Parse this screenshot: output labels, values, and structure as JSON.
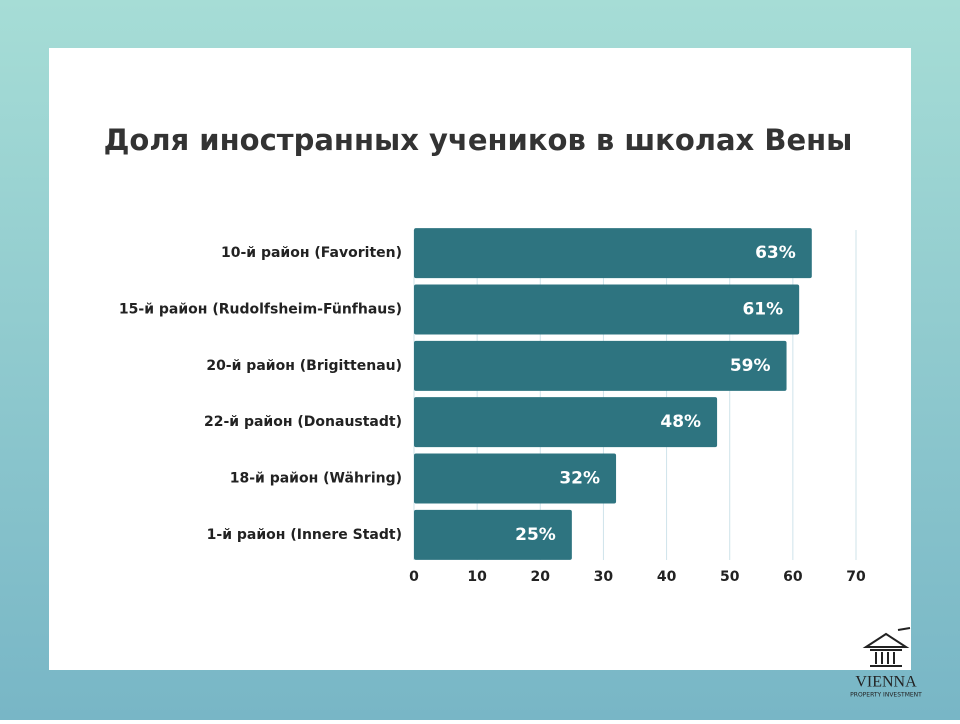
{
  "chart_data": {
    "type": "barh",
    "title": "Доля иностранных учеников в школах Вены",
    "categories": [
      "10-й район (Favoriten)",
      "15-й район (Rudolfsheim-Fünfhaus)",
      "20-й район (Brigittenau)",
      "22-й район (Donaustadt)",
      "18-й район (Währing)",
      "1-й район (Innere Stadt)"
    ],
    "values": [
      63,
      61,
      59,
      48,
      32,
      25
    ],
    "value_labels": [
      "63%",
      "61%",
      "59%",
      "48%",
      "32%",
      "25%"
    ],
    "color": "#2e7480",
    "xlim": [
      0,
      70
    ],
    "xticks": [
      0,
      10,
      20,
      30,
      40,
      50,
      60,
      70
    ],
    "grid": true
  },
  "logo": {
    "name": "VIENNA",
    "tagline": "PROPERTY INVESTMENT"
  }
}
